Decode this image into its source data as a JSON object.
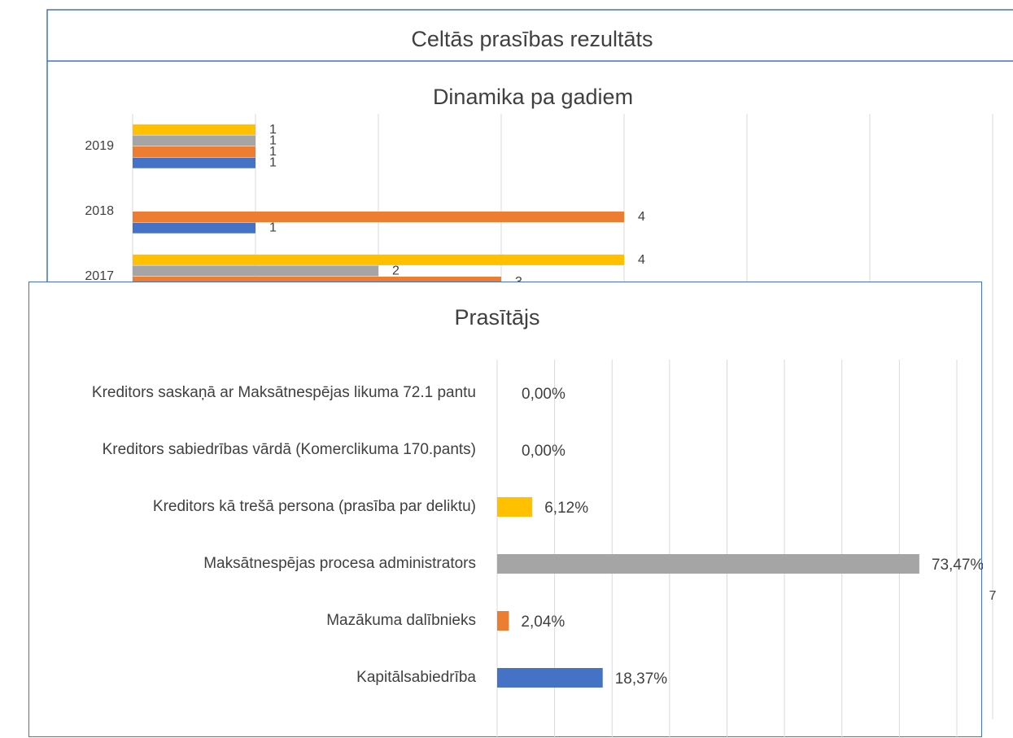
{
  "chart_data": [
    {
      "type": "bar",
      "orientation": "horizontal",
      "title": "Celtās prasības rezultāts",
      "subtitle": "Dinamika pa gadiem",
      "categories": [
        "2019",
        "2018",
        "2017"
      ],
      "series": [
        {
          "color": "#4472c4",
          "values": [
            1,
            1,
            null
          ]
        },
        {
          "color": "#ed7d31",
          "values": [
            1,
            4,
            3
          ]
        },
        {
          "color": "#a5a5a5",
          "values": [
            1,
            null,
            2
          ]
        },
        {
          "color": "#ffc000",
          "values": [
            1,
            null,
            4
          ]
        }
      ],
      "xlim": [
        0,
        7
      ],
      "xticks": [
        0,
        1,
        2,
        3,
        4,
        5,
        6,
        7
      ],
      "grid": true
    },
    {
      "type": "bar",
      "orientation": "horizontal",
      "title": "Prasītājs",
      "categories": [
        "Kreditors saskaņā ar Maksātnespējas likuma 72.1 pantu",
        "Kreditors sabiedrības vārdā (Komerclikuma 170.pants)",
        "Kreditors kā trešā persona (prasība par deliktu)",
        "Maksātnespējas procesa administrators",
        "Mazākuma dalībnieks",
        "Kapitālsabiedrība"
      ],
      "values": [
        0,
        0,
        6.12,
        73.47,
        2.04,
        18.37
      ],
      "value_labels": [
        "0,00%",
        "0,00%",
        "6,12%",
        "73,47%",
        "2,04%",
        "18,37%"
      ],
      "colors": [
        "#70ad47",
        "#5b9bd5",
        "#ffc000",
        "#a5a5a5",
        "#ed7d31",
        "#4472c4"
      ],
      "xlim": [
        0,
        80
      ],
      "xticks": [
        0,
        10,
        20,
        30,
        40,
        50,
        60,
        70,
        80
      ],
      "grid": true
    }
  ]
}
